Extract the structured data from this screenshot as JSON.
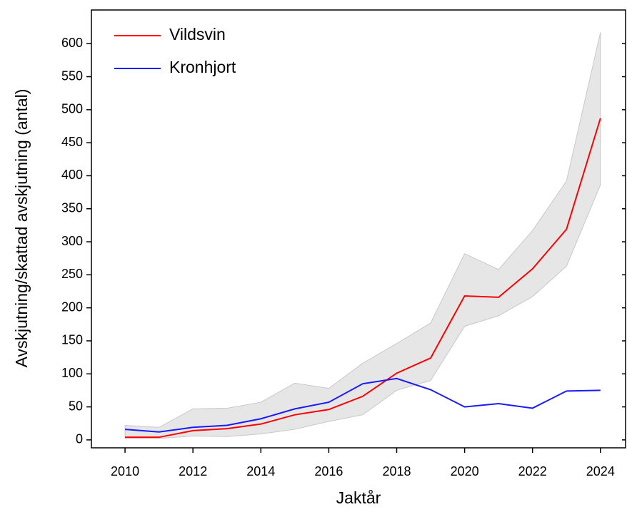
{
  "chart_data": {
    "type": "line",
    "x_label": "Jaktår",
    "y_label": "Avskjutning/skattad avskjutning (antal)",
    "x": [
      2010,
      2011,
      2012,
      2013,
      2014,
      2015,
      2016,
      2017,
      2018,
      2019,
      2020,
      2021,
      2022,
      2023,
      2024
    ],
    "series": [
      {
        "name": "Vildsvin",
        "color": "#ff0000",
        "values": [
          4,
          4,
          14,
          17,
          24,
          38,
          46,
          66,
          101,
          124,
          218,
          216,
          259,
          319,
          487
        ]
      },
      {
        "name": "Kronhjort",
        "color": "#1a1aff",
        "values": [
          16,
          12,
          19,
          22,
          32,
          47,
          57,
          85,
          93,
          76,
          50,
          55,
          48,
          74,
          75
        ]
      }
    ],
    "band": {
      "color": "#e6e6e6",
      "lower": [
        2,
        2,
        6,
        5,
        9,
        16,
        28,
        38,
        75,
        90,
        172,
        188,
        217,
        263,
        386
      ],
      "upper": [
        22,
        19,
        47,
        48,
        57,
        86,
        78,
        116,
        146,
        177,
        282,
        258,
        317,
        392,
        617
      ]
    },
    "xlim": [
      2009.01,
      2024.74
    ],
    "xticks": [
      2010,
      2012,
      2014,
      2016,
      2018,
      2020,
      2022,
      2024
    ],
    "ylim": [
      -12,
      651
    ],
    "yticks": [
      0,
      50,
      100,
      150,
      200,
      250,
      300,
      350,
      400,
      450,
      500,
      550,
      600
    ],
    "legend": "top-left"
  }
}
